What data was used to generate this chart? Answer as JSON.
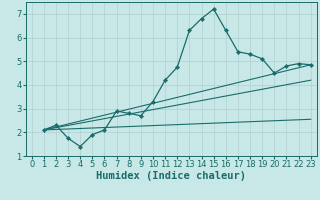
{
  "xlabel": "Humidex (Indice chaleur)",
  "xlim": [
    -0.5,
    23.5
  ],
  "ylim": [
    1,
    7.5
  ],
  "xticks": [
    0,
    1,
    2,
    3,
    4,
    5,
    6,
    7,
    8,
    9,
    10,
    11,
    12,
    13,
    14,
    15,
    16,
    17,
    18,
    19,
    20,
    21,
    22,
    23
  ],
  "yticks": [
    1,
    2,
    3,
    4,
    5,
    6,
    7
  ],
  "bg_color": "#c8e8e8",
  "grid_color": "#b0d0d0",
  "line_color": "#1a6b6b",
  "main_x": [
    1,
    2,
    3,
    4,
    5,
    6,
    7,
    8,
    9,
    10,
    11,
    12,
    13,
    14,
    15,
    16,
    17,
    18,
    19,
    20,
    21,
    22,
    23
  ],
  "main_y": [
    2.1,
    2.3,
    1.75,
    1.4,
    1.9,
    2.1,
    2.9,
    2.8,
    2.7,
    3.3,
    4.2,
    4.75,
    6.3,
    6.8,
    7.2,
    6.3,
    5.4,
    5.3,
    5.1,
    4.5,
    4.8,
    4.9,
    4.85
  ],
  "trend1_x": [
    1,
    23
  ],
  "trend1_y": [
    2.1,
    4.85
  ],
  "trend2_x": [
    1,
    23
  ],
  "trend2_y": [
    2.1,
    4.2
  ],
  "trend3_x": [
    1,
    23
  ],
  "trend3_y": [
    2.1,
    2.55
  ],
  "xlabel_fontsize": 7.5,
  "tick_fontsize": 6
}
